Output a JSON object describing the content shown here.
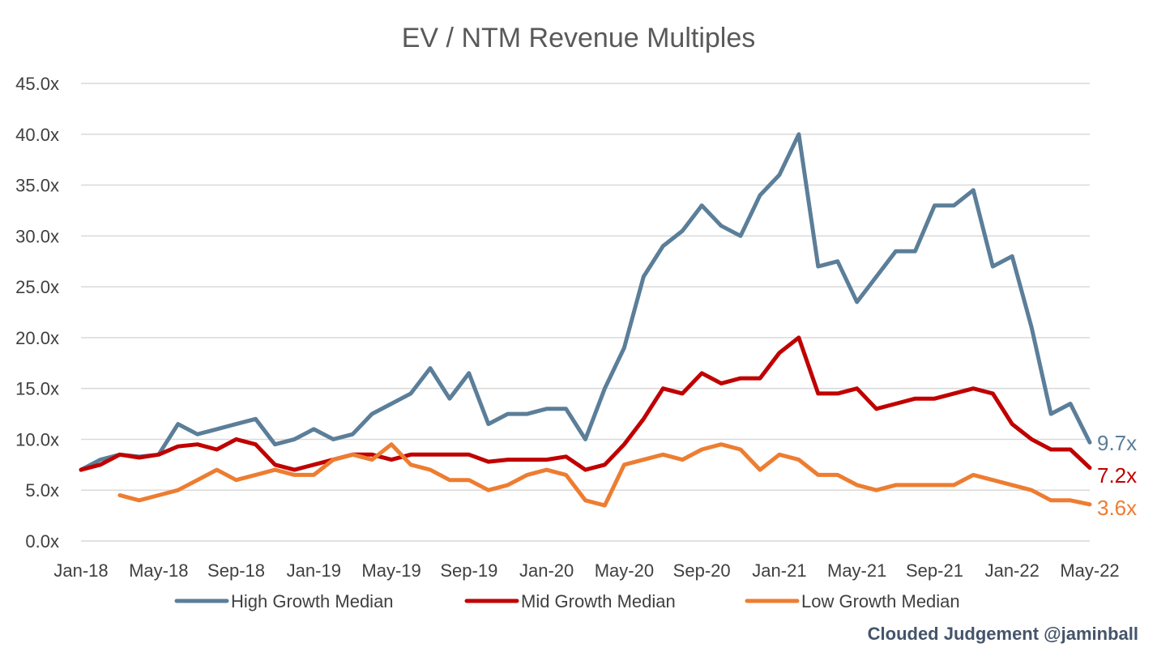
{
  "chart_data": {
    "type": "line",
    "title": "EV / NTM Revenue Multiples",
    "xlabel": "",
    "ylabel": "",
    "ylim": [
      0,
      45
    ],
    "y_ticks": [
      "0.0x",
      "5.0x",
      "10.0x",
      "15.0x",
      "20.0x",
      "25.0x",
      "30.0x",
      "35.0x",
      "40.0x",
      "45.0x"
    ],
    "x_ticks": [
      "Jan-18",
      "May-18",
      "Sep-18",
      "Jan-19",
      "May-19",
      "Sep-19",
      "Jan-20",
      "May-20",
      "Sep-20",
      "Jan-21",
      "May-21",
      "Sep-21",
      "Jan-22",
      "May-22"
    ],
    "x_range": [
      "Jan-18",
      "May-22"
    ],
    "grid": true,
    "legend_position": "bottom",
    "series": [
      {
        "name": "High Growth Median",
        "color": "#5b7e99",
        "end_label": "9.7x",
        "points": [
          [
            "Jan-18",
            7.0
          ],
          [
            "Feb-18",
            8.0
          ],
          [
            "Mar-18",
            8.5
          ],
          [
            "Apr-18",
            8.3
          ],
          [
            "May-18",
            8.5
          ],
          [
            "Jun-18",
            11.5
          ],
          [
            "Jul-18",
            10.5
          ],
          [
            "Aug-18",
            11.0
          ],
          [
            "Sep-18",
            11.5
          ],
          [
            "Oct-18",
            12.0
          ],
          [
            "Nov-18",
            9.5
          ],
          [
            "Dec-18",
            10.0
          ],
          [
            "Jan-19",
            11.0
          ],
          [
            "Feb-19",
            10.0
          ],
          [
            "Mar-19",
            10.5
          ],
          [
            "Apr-19",
            12.5
          ],
          [
            "May-19",
            13.5
          ],
          [
            "Jun-19",
            14.5
          ],
          [
            "Jul-19",
            17.0
          ],
          [
            "Aug-19",
            14.0
          ],
          [
            "Sep-19",
            16.5
          ],
          [
            "Oct-19",
            11.5
          ],
          [
            "Nov-19",
            12.5
          ],
          [
            "Dec-19",
            12.5
          ],
          [
            "Jan-20",
            13.0
          ],
          [
            "Feb-20",
            13.0
          ],
          [
            "Mar-20",
            10.0
          ],
          [
            "Apr-20",
            15.0
          ],
          [
            "May-20",
            19.0
          ],
          [
            "Jun-20",
            26.0
          ],
          [
            "Jul-20",
            29.0
          ],
          [
            "Aug-20",
            30.5
          ],
          [
            "Sep-20",
            33.0
          ],
          [
            "Oct-20",
            31.0
          ],
          [
            "Nov-20",
            30.0
          ],
          [
            "Dec-20",
            34.0
          ],
          [
            "Jan-21",
            36.0
          ],
          [
            "Feb-21",
            40.0
          ],
          [
            "Mar-21",
            27.0
          ],
          [
            "Apr-21",
            27.5
          ],
          [
            "May-21",
            23.5
          ],
          [
            "Jun-21",
            26.0
          ],
          [
            "Jul-21",
            28.5
          ],
          [
            "Aug-21",
            28.5
          ],
          [
            "Sep-21",
            33.0
          ],
          [
            "Oct-21",
            33.0
          ],
          [
            "Nov-21",
            34.5
          ],
          [
            "Dec-21",
            27.0
          ],
          [
            "Jan-22",
            28.0
          ],
          [
            "Feb-22",
            21.0
          ],
          [
            "Mar-22",
            12.5
          ],
          [
            "Apr-22",
            13.5
          ],
          [
            "May-22",
            9.7
          ]
        ]
      },
      {
        "name": "Mid Growth Median",
        "color": "#c00000",
        "end_label": "7.2x",
        "points": [
          [
            "Jan-18",
            7.0
          ],
          [
            "Feb-18",
            7.5
          ],
          [
            "Mar-18",
            8.5
          ],
          [
            "Apr-18",
            8.2
          ],
          [
            "May-18",
            8.5
          ],
          [
            "Jun-18",
            9.3
          ],
          [
            "Jul-18",
            9.5
          ],
          [
            "Aug-18",
            9.0
          ],
          [
            "Sep-18",
            10.0
          ],
          [
            "Oct-18",
            9.5
          ],
          [
            "Nov-18",
            7.5
          ],
          [
            "Dec-18",
            7.0
          ],
          [
            "Jan-19",
            7.5
          ],
          [
            "Feb-19",
            8.0
          ],
          [
            "Mar-19",
            8.5
          ],
          [
            "Apr-19",
            8.5
          ],
          [
            "May-19",
            8.0
          ],
          [
            "Jun-19",
            8.5
          ],
          [
            "Jul-19",
            8.5
          ],
          [
            "Aug-19",
            8.5
          ],
          [
            "Sep-19",
            8.5
          ],
          [
            "Oct-19",
            7.8
          ],
          [
            "Nov-19",
            8.0
          ],
          [
            "Dec-19",
            8.0
          ],
          [
            "Jan-20",
            8.0
          ],
          [
            "Feb-20",
            8.3
          ],
          [
            "Mar-20",
            7.0
          ],
          [
            "Apr-20",
            7.5
          ],
          [
            "May-20",
            9.5
          ],
          [
            "Jun-20",
            12.0
          ],
          [
            "Jul-20",
            15.0
          ],
          [
            "Aug-20",
            14.5
          ],
          [
            "Sep-20",
            16.5
          ],
          [
            "Oct-20",
            15.5
          ],
          [
            "Nov-20",
            16.0
          ],
          [
            "Dec-20",
            16.0
          ],
          [
            "Jan-21",
            18.5
          ],
          [
            "Feb-21",
            20.0
          ],
          [
            "Mar-21",
            14.5
          ],
          [
            "Apr-21",
            14.5
          ],
          [
            "May-21",
            15.0
          ],
          [
            "Jun-21",
            13.0
          ],
          [
            "Jul-21",
            13.5
          ],
          [
            "Aug-21",
            14.0
          ],
          [
            "Sep-21",
            14.0
          ],
          [
            "Oct-21",
            14.5
          ],
          [
            "Nov-21",
            15.0
          ],
          [
            "Dec-21",
            14.5
          ],
          [
            "Jan-22",
            11.5
          ],
          [
            "Feb-22",
            10.0
          ],
          [
            "Mar-22",
            9.0
          ],
          [
            "Apr-22",
            9.0
          ],
          [
            "May-22",
            7.2
          ]
        ]
      },
      {
        "name": "Low Growth Median",
        "color": "#ed7d31",
        "end_label": "3.6x",
        "points": [
          [
            "Mar-18",
            4.5
          ],
          [
            "Apr-18",
            4.0
          ],
          [
            "May-18",
            4.5
          ],
          [
            "Jun-18",
            5.0
          ],
          [
            "Jul-18",
            6.0
          ],
          [
            "Aug-18",
            7.0
          ],
          [
            "Sep-18",
            6.0
          ],
          [
            "Oct-18",
            6.5
          ],
          [
            "Nov-18",
            7.0
          ],
          [
            "Dec-18",
            6.5
          ],
          [
            "Jan-19",
            6.5
          ],
          [
            "Feb-19",
            8.0
          ],
          [
            "Mar-19",
            8.5
          ],
          [
            "Apr-19",
            8.0
          ],
          [
            "May-19",
            9.5
          ],
          [
            "Jun-19",
            7.5
          ],
          [
            "Jul-19",
            7.0
          ],
          [
            "Aug-19",
            6.0
          ],
          [
            "Sep-19",
            6.0
          ],
          [
            "Oct-19",
            5.0
          ],
          [
            "Nov-19",
            5.5
          ],
          [
            "Dec-19",
            6.5
          ],
          [
            "Jan-20",
            7.0
          ],
          [
            "Feb-20",
            6.5
          ],
          [
            "Mar-20",
            4.0
          ],
          [
            "Apr-20",
            3.5
          ],
          [
            "May-20",
            7.5
          ],
          [
            "Jun-20",
            8.0
          ],
          [
            "Jul-20",
            8.5
          ],
          [
            "Aug-20",
            8.0
          ],
          [
            "Sep-20",
            9.0
          ],
          [
            "Oct-20",
            9.5
          ],
          [
            "Nov-20",
            9.0
          ],
          [
            "Dec-20",
            7.0
          ],
          [
            "Jan-21",
            8.5
          ],
          [
            "Feb-21",
            8.0
          ],
          [
            "Mar-21",
            6.5
          ],
          [
            "Apr-21",
            6.5
          ],
          [
            "May-21",
            5.5
          ],
          [
            "Jun-21",
            5.0
          ],
          [
            "Jul-21",
            5.5
          ],
          [
            "Aug-21",
            5.5
          ],
          [
            "Sep-21",
            5.5
          ],
          [
            "Oct-21",
            5.5
          ],
          [
            "Nov-21",
            6.5
          ],
          [
            "Dec-21",
            6.0
          ],
          [
            "Jan-22",
            5.5
          ],
          [
            "Feb-22",
            5.0
          ],
          [
            "Mar-22",
            4.0
          ],
          [
            "Apr-22",
            4.0
          ],
          [
            "May-22",
            3.6
          ]
        ]
      }
    ]
  },
  "footer": {
    "credit": "Clouded Judgement @jaminball"
  }
}
